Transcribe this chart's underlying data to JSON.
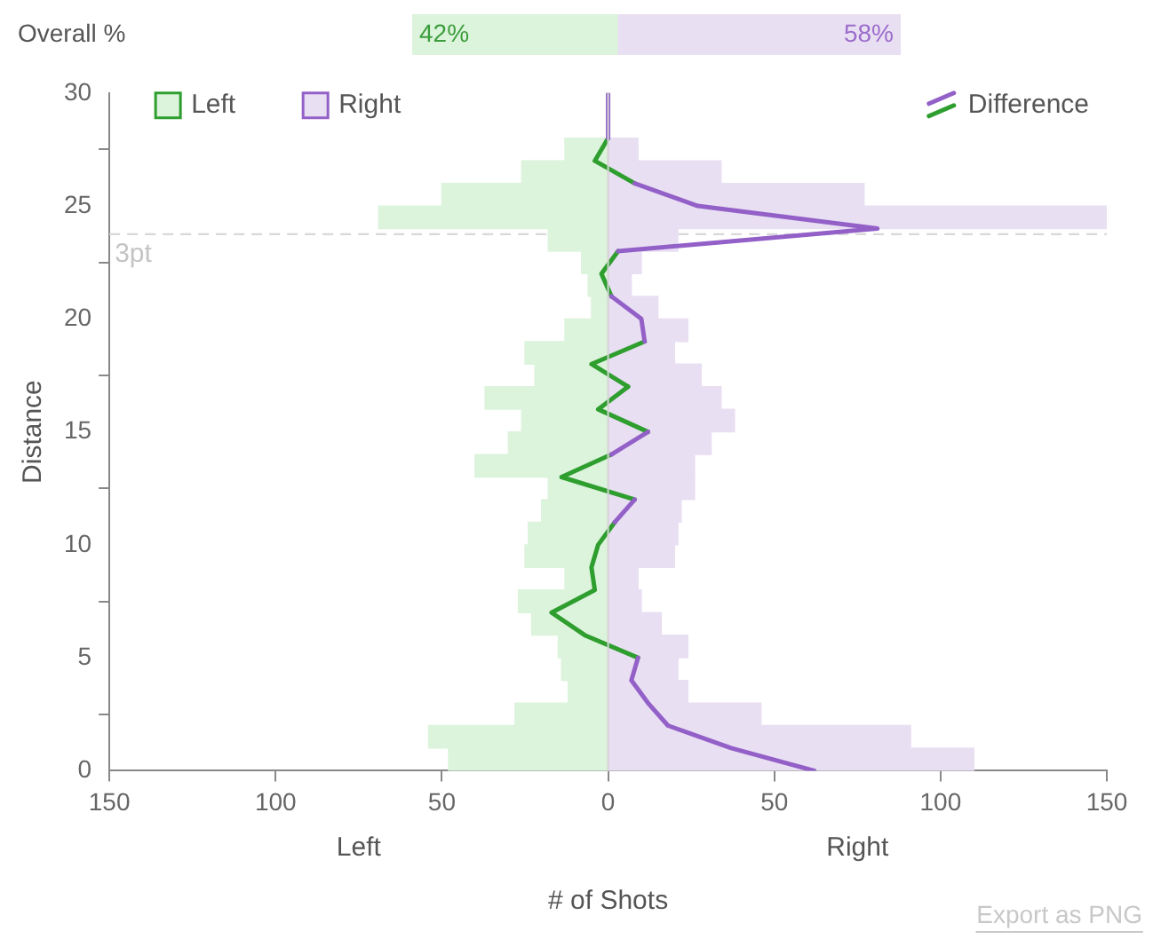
{
  "chart_data": [
    {
      "type": "bar",
      "ylabel": "Overall %",
      "orientation": "horizontal",
      "stacked": true,
      "categories": [
        null
      ],
      "xlim": [
        0,
        100
      ],
      "tick_labels": false,
      "legend": false,
      "series": [
        {
          "color": "#dcf3dc",
          "values": [
            42
          ],
          "value_labels": [
            "42%"
          ]
        },
        {
          "color": "#e9dff3",
          "values": [
            58
          ],
          "value_labels": [
            "58%"
          ]
        }
      ]
    },
    {
      "type": "bar",
      "orientation": "horizontal",
      "stacked": true,
      "xlabel": "# of Shots",
      "ylabel": "Distance",
      "legend": "top",
      "grid": false,
      "x": [
        0.5,
        1.5,
        2.5,
        3.5,
        4.5,
        5.5,
        6.5,
        7.5,
        8.5,
        9.5,
        10.5,
        11.5,
        12.5,
        13.5,
        14.5,
        15.5,
        16.5,
        17.5,
        18.5,
        19.5,
        20.5,
        21.5,
        22.5,
        23.5,
        24.5,
        25.5,
        26.5,
        27.5,
        28.5,
        29.5
      ],
      "xlim": [
        -150,
        150
      ],
      "xticks": [
        {
          "value": -150,
          "label": "150"
        },
        {
          "value": -100,
          "label": "100"
        },
        {
          "value": -50,
          "label": "50"
        },
        0,
        50,
        100,
        150
      ],
      "ylim": [
        0,
        30
      ],
      "yticks": [
        0,
        5,
        10,
        15,
        20,
        25,
        30
      ],
      "series": [
        {
          "name": "Left",
          "color": "#dcf3dc",
          "values": [
            -48,
            -54,
            -28,
            -12,
            -14,
            -15,
            -23,
            -27,
            -13,
            -25,
            -24,
            -20,
            -18,
            -40,
            -30,
            -26,
            -37,
            -22,
            -25,
            -13,
            -5,
            -6,
            -8,
            -18,
            -69,
            -50,
            -26,
            -13,
            0,
            0
          ]
        },
        {
          "name": "Right",
          "color": "#e9dff3",
          "values": [
            110,
            91,
            46,
            24,
            21,
            24,
            16,
            10,
            9,
            20,
            21,
            22,
            26,
            26,
            31,
            38,
            34,
            28,
            20,
            24,
            15,
            7,
            10,
            21,
            150,
            77,
            34,
            9,
            0,
            0
          ]
        },
        {
          "name": "Difference",
          "type": "line",
          "color": "#9360c8",
          "x": [
            0,
            1,
            2,
            3,
            4,
            5,
            6,
            7,
            8,
            9,
            10,
            11,
            12,
            13,
            14,
            15,
            16,
            17,
            18,
            19,
            20,
            21,
            22,
            23,
            24,
            25,
            26,
            27,
            28,
            29,
            30
          ],
          "values": [
            62,
            37,
            18,
            12,
            7,
            9,
            null,
            null,
            null,
            null,
            null,
            2,
            8,
            null,
            1,
            12,
            null,
            null,
            null,
            11,
            10,
            1,
            null,
            3,
            81,
            27,
            8,
            null,
            0,
            0,
            0
          ]
        },
        {
          "type": "line",
          "color": "#2e9e2e",
          "x": [
            5,
            6,
            7,
            8,
            9,
            10,
            11
          ],
          "values": [
            9,
            -7,
            -17,
            -4,
            -5,
            -3,
            2
          ]
        },
        {
          "type": "line",
          "color": "#2e9e2e",
          "x": [
            12,
            13,
            14
          ],
          "values": [
            8,
            -14,
            1
          ]
        },
        {
          "type": "line",
          "color": "#2e9e2e",
          "x": [
            15,
            16,
            17
          ],
          "values": [
            12,
            -3,
            6
          ]
        },
        {
          "type": "line",
          "color": "#2e9e2e",
          "x": [
            17,
            18,
            19
          ],
          "values": [
            6,
            -5,
            11
          ]
        },
        {
          "type": "line",
          "color": "#2e9e2e",
          "x": [
            21,
            22,
            23
          ],
          "values": [
            1,
            -2,
            3
          ]
        },
        {
          "type": "line",
          "color": "#2e9e2e",
          "x": [
            26,
            27,
            28
          ],
          "values": [
            8,
            -4,
            0
          ]
        }
      ],
      "ref_lines": [
        {
          "axis": "x",
          "value": 0,
          "color": "#d4d4d4",
          "line_style": "solid"
        },
        {
          "axis": "y",
          "value": 23.75,
          "label": "3pt",
          "color": "#d8d8d8",
          "line_style": "dashed"
        }
      ],
      "annotations": [
        "Left",
        "Right",
        "Export as PNG"
      ]
    }
  ]
}
